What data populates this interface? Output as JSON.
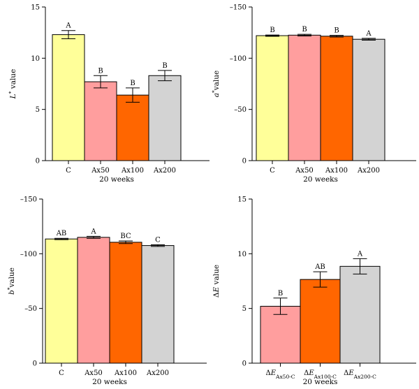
{
  "chart_data": [
    {
      "type": "bar",
      "panel": "L",
      "categories": [
        "C",
        "Ax50",
        "Ax100",
        "Ax200"
      ],
      "values": [
        12.3,
        7.7,
        6.4,
        8.3
      ],
      "errors": [
        0.4,
        0.6,
        0.7,
        0.5
      ],
      "significance": [
        "A",
        "B",
        "B",
        "B"
      ],
      "colors": [
        "#FFFF99",
        "#FF9E9E",
        "#FF6600",
        "#D3D3D3"
      ],
      "ylabel": {
        "italic": "L",
        "sup": "*",
        "rest": " value"
      },
      "xlabel": "20 weeks",
      "ylim": [
        0,
        15
      ],
      "yticks": [
        0,
        5,
        10,
        15
      ],
      "ytick_labels": [
        "0",
        "5",
        "10",
        "15"
      ],
      "axis_inverted": false
    },
    {
      "type": "bar",
      "panel": "a",
      "categories": [
        "C",
        "Ax50",
        "Ax100",
        "Ax200"
      ],
      "values": [
        -122,
        -122.5,
        -121.5,
        -118.5
      ],
      "errors": [
        0.6,
        0.8,
        0.8,
        0.9
      ],
      "significance": [
        "B",
        "B",
        "B",
        "A"
      ],
      "colors": [
        "#FFFF99",
        "#FF9E9E",
        "#FF6600",
        "#D3D3D3"
      ],
      "ylabel": {
        "italic": "a",
        "sup": "*",
        "rest": "value"
      },
      "xlabel": "20 weeks",
      "ylim": [
        0,
        -150
      ],
      "yticks": [
        0,
        -50,
        -100,
        -150
      ],
      "ytick_labels": [
        "0",
        "–50",
        "–100",
        "–150"
      ],
      "axis_inverted": true
    },
    {
      "type": "bar",
      "panel": "b",
      "categories": [
        "C",
        "Ax50",
        "Ax100",
        "Ax200"
      ],
      "values": [
        -113.5,
        -115,
        -110.5,
        -107.5
      ],
      "errors": [
        0.6,
        0.9,
        1.2,
        0.8
      ],
      "significance": [
        "AB",
        "A",
        "BC",
        "C"
      ],
      "colors": [
        "#FFFF99",
        "#FF9E9E",
        "#FF6600",
        "#D3D3D3"
      ],
      "ylabel": {
        "italic": "b",
        "sup": "*",
        "rest": "value"
      },
      "xlabel": "20 weeks",
      "ylim": [
        0,
        -150
      ],
      "yticks": [
        0,
        -50,
        -100,
        -150
      ],
      "ytick_labels": [
        "0",
        "–50",
        "–100",
        "–150"
      ],
      "axis_inverted": true
    },
    {
      "type": "bar",
      "panel": "deltaE",
      "categories": [
        {
          "main": "ΔE",
          "sub": "Ax50-C"
        },
        {
          "main": "ΔE",
          "sub": "Ax100-C"
        },
        {
          "main": "ΔE",
          "sub": "Ax200-C"
        }
      ],
      "values": [
        5.2,
        7.65,
        8.85
      ],
      "errors": [
        0.75,
        0.7,
        0.7
      ],
      "significance": [
        "B",
        "AB",
        "A"
      ],
      "colors": [
        "#FF9E9E",
        "#FF6600",
        "#D3D3D3"
      ],
      "ylabel": {
        "plain": "Δ",
        "italic": "E",
        "rest": " value"
      },
      "xlabel": "20 weeks",
      "ylim": [
        0,
        15
      ],
      "yticks": [
        0,
        5,
        10,
        15
      ],
      "ytick_labels": [
        "0",
        "5",
        "10",
        "15"
      ],
      "axis_inverted": false
    }
  ]
}
